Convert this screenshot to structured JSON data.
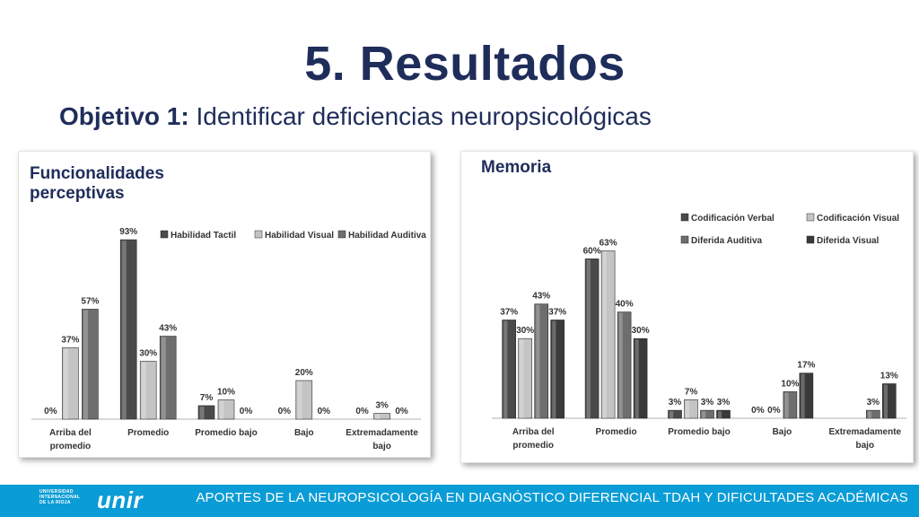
{
  "slide": {
    "title": "5. Resultados",
    "subtitle_bold": "Objetivo 1:",
    "subtitle_rest": " Identificar deficiencias neuropsicológicas"
  },
  "footer": {
    "text": "APORTES DE LA NEUROPSICOLOGÍA EN DIAGNÓSTICO DIFERENCIAL TDAH Y DIFICULTADES ACADÉMICAS",
    "logo_seal_lines": [
      "UNIVERSIDAD",
      "INTERNACIONAL",
      "DE LA RIOJA"
    ],
    "logo_text": "unir"
  },
  "chart_data": [
    {
      "type": "bar",
      "title": "Funcionalidades perceptivas",
      "categories": [
        "Arriba del promedio",
        "Promedio",
        "Promedio bajo",
        "Bajo",
        "Extremadamente bajo"
      ],
      "series": [
        {
          "name": "Habilidad Tactil",
          "values": [
            0,
            93,
            7,
            0,
            0
          ],
          "color": "#4a4a4a"
        },
        {
          "name": "Habilidad Visual",
          "values": [
            37,
            30,
            10,
            20,
            3
          ],
          "color": "#c4c4c4"
        },
        {
          "name": "Habilidad Auditiva",
          "values": [
            57,
            43,
            0,
            0,
            0
          ],
          "color": "#6e6e6e"
        }
      ],
      "ylim": [
        0,
        100
      ],
      "grid": false,
      "legend": "top",
      "value_suffix": "%"
    },
    {
      "type": "bar",
      "title": "Memoria",
      "categories": [
        "Arriba del promedio",
        "Promedio",
        "Promedio bajo",
        "Bajo",
        "Extremadamente bajo"
      ],
      "series": [
        {
          "name": "Codificación Verbal",
          "values": [
            37,
            60,
            3,
            0,
            null
          ],
          "color": "#4a4a4a"
        },
        {
          "name": "Codificación Visual",
          "values": [
            30,
            63,
            7,
            0,
            null
          ],
          "color": "#c4c4c4"
        },
        {
          "name": "Diferida Auditiva",
          "values": [
            43,
            40,
            3,
            10,
            3
          ],
          "color": "#6e6e6e"
        },
        {
          "name": "Diferida Visual",
          "values": [
            37,
            30,
            3,
            17,
            13
          ],
          "color": "#3a3a3a"
        }
      ],
      "ylim": [
        0,
        100
      ],
      "grid": false,
      "legend": "top-right",
      "value_suffix": "%"
    }
  ]
}
